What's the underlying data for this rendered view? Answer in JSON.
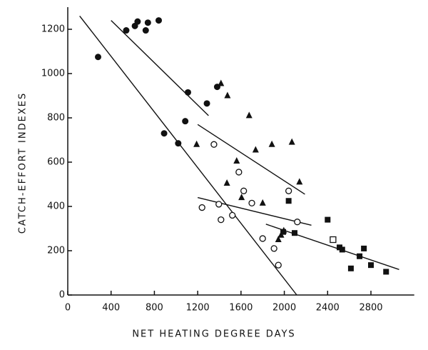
{
  "chart_data": {
    "type": "scatter",
    "xlabel": "NET HEATING DEGREE DAYS",
    "ylabel": "CATCH-EFFORT INDEXES",
    "xlim": [
      0,
      3200
    ],
    "ylim": [
      0,
      1300
    ],
    "xticks": [
      0,
      400,
      800,
      1200,
      1600,
      2000,
      2400,
      2800
    ],
    "yticks": [
      0,
      200,
      400,
      600,
      800,
      1000,
      1200
    ],
    "color": "#111111",
    "series": [
      {
        "marker": "circle-filled",
        "x": [
          280,
          540,
          620,
          645,
          720,
          740,
          840,
          890,
          1020,
          1085,
          1110,
          1285,
          1380
        ],
        "values": [
          1075,
          1195,
          1215,
          1235,
          1195,
          1230,
          1240,
          730,
          685,
          785,
          915,
          865,
          940
        ]
      },
      {
        "marker": "triangle-filled",
        "x": [
          1190,
          1415,
          1475,
          1470,
          1560,
          1605,
          1675,
          1735,
          1800,
          1885,
          1945,
          1970,
          1995,
          2070,
          2140
        ],
        "values": [
          680,
          955,
          900,
          505,
          605,
          440,
          810,
          655,
          415,
          680,
          250,
          270,
          290,
          690,
          510
        ]
      },
      {
        "marker": "circle-open",
        "x": [
          1240,
          1350,
          1395,
          1415,
          1520,
          1580,
          1625,
          1700,
          1800,
          1905,
          1945,
          2040,
          2120
        ],
        "values": [
          395,
          680,
          410,
          340,
          360,
          555,
          470,
          415,
          255,
          210,
          135,
          470,
          330
        ]
      },
      {
        "marker": "square-filled",
        "x": [
          1990,
          2040,
          2095,
          2400,
          2510,
          2535,
          2615,
          2695,
          2735,
          2800,
          2940
        ],
        "values": [
          285,
          425,
          280,
          340,
          215,
          205,
          120,
          175,
          210,
          135,
          105
        ]
      },
      {
        "marker": "square-open",
        "x": [
          2450
        ],
        "values": [
          250
        ]
      }
    ],
    "trend_lines": [
      {
        "x": [
          400,
          1300
        ],
        "values": [
          1240,
          810
        ]
      },
      {
        "x": [
          110,
          2115
        ],
        "values": [
          1260,
          0
        ]
      },
      {
        "x": [
          1200,
          2190
        ],
        "values": [
          770,
          455
        ]
      },
      {
        "x": [
          1200,
          2250
        ],
        "values": [
          440,
          315
        ]
      },
      {
        "x": [
          1830,
          3060
        ],
        "values": [
          320,
          115
        ]
      }
    ]
  }
}
